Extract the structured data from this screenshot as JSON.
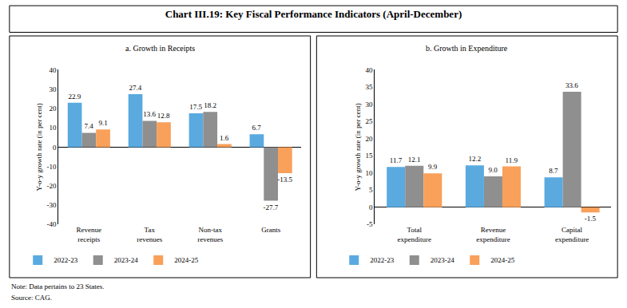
{
  "title": "Chart III.19: Key Fiscal Performance Indicators (April-December)",
  "note": "Note: Data pertains to 23 States.",
  "source": "Source: CAG.",
  "chart_data": [
    {
      "type": "bar",
      "title": "a. Growth in Receipts",
      "y_label": "Y-o-y growth rate (in per cent)",
      "categories": [
        "Revenue receipts",
        "Tax revenues",
        "Non-tax revenues",
        "Grants"
      ],
      "series": [
        {
          "name": "2022-23",
          "color": "#5AAAE0",
          "values": [
            22.9,
            27.4,
            17.5,
            6.7
          ]
        },
        {
          "name": "2023-24",
          "color": "#8F8F8F",
          "values": [
            7.4,
            13.6,
            18.2,
            -27.7
          ]
        },
        {
          "name": "2024-25",
          "color": "#F9A05A",
          "values": [
            9.1,
            12.8,
            1.6,
            -13.5
          ]
        }
      ],
      "ylim": [
        -40,
        40
      ],
      "yticks": [
        -40,
        -30,
        -20,
        -10,
        0,
        10,
        20,
        30,
        40
      ],
      "grid": false,
      "legend": "bottom",
      "data_labels": true
    },
    {
      "type": "bar",
      "title": "b. Growth in Expenditure",
      "y_label": "Y-o-y growth rate (in per cent)",
      "categories": [
        "Total expenditure",
        "Revenue expenditure",
        "Capital expenditure"
      ],
      "series": [
        {
          "name": "2022-23",
          "color": "#5AAAE0",
          "values": [
            11.7,
            12.2,
            8.7
          ]
        },
        {
          "name": "2023-24",
          "color": "#8F8F8F",
          "values": [
            12.1,
            9.0,
            33.6
          ],
          "value_labels": [
            "12.1",
            "9.0",
            "33.6"
          ]
        },
        {
          "name": "2024-25",
          "color": "#F9A05A",
          "values": [
            9.9,
            11.9,
            -1.5
          ]
        }
      ],
      "ylim": [
        -5,
        40
      ],
      "yticks": [
        -5,
        0,
        5,
        10,
        15,
        20,
        25,
        30,
        35,
        40
      ],
      "grid": false,
      "legend": "bottom",
      "data_labels": true
    }
  ]
}
